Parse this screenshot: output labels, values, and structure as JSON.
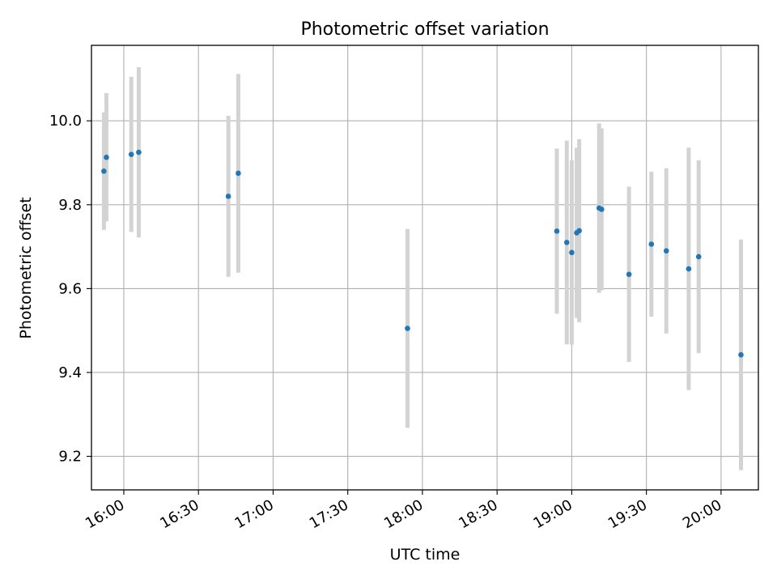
{
  "chart_data": {
    "type": "scatter",
    "title": "Photometric offset variation",
    "xlabel": "UTC time",
    "ylabel": "Photometric offset",
    "grid": true,
    "xlim": [
      "15:47",
      "20:15"
    ],
    "ylim": [
      9.12,
      10.18
    ],
    "xticks": [
      "16:00",
      "16:30",
      "17:00",
      "17:30",
      "18:00",
      "18:30",
      "19:00",
      "19:30",
      "20:00"
    ],
    "yticks": [
      "9.2",
      "9.4",
      "9.6",
      "9.8",
      "10.0"
    ],
    "colors": {
      "points": "#1f77b4",
      "errorbars": "#d3d3d3",
      "grid": "#b0b0b0"
    },
    "points": [
      {
        "time": "15:52",
        "y": 9.88,
        "ylow": 9.74,
        "yhigh": 10.02
      },
      {
        "time": "15:53",
        "y": 9.913,
        "ylow": 9.76,
        "yhigh": 10.066
      },
      {
        "time": "16:03",
        "y": 9.92,
        "ylow": 9.735,
        "yhigh": 10.105
      },
      {
        "time": "16:06",
        "y": 9.925,
        "ylow": 9.722,
        "yhigh": 10.128
      },
      {
        "time": "16:42",
        "y": 9.82,
        "ylow": 9.628,
        "yhigh": 10.012
      },
      {
        "time": "16:46",
        "y": 9.875,
        "ylow": 9.638,
        "yhigh": 10.112
      },
      {
        "time": "17:54",
        "y": 9.505,
        "ylow": 9.268,
        "yhigh": 9.742
      },
      {
        "time": "18:54",
        "y": 9.737,
        "ylow": 9.54,
        "yhigh": 9.934
      },
      {
        "time": "18:58",
        "y": 9.71,
        "ylow": 9.467,
        "yhigh": 9.953
      },
      {
        "time": "19:00",
        "y": 9.686,
        "ylow": 9.466,
        "yhigh": 9.906
      },
      {
        "time": "19:02",
        "y": 9.733,
        "ylow": 9.53,
        "yhigh": 9.936
      },
      {
        "time": "19:03",
        "y": 9.738,
        "ylow": 9.52,
        "yhigh": 9.956
      },
      {
        "time": "19:11",
        "y": 9.792,
        "ylow": 9.59,
        "yhigh": 9.994
      },
      {
        "time": "19:12",
        "y": 9.789,
        "ylow": 9.596,
        "yhigh": 9.982
      },
      {
        "time": "19:23",
        "y": 9.634,
        "ylow": 9.425,
        "yhigh": 9.843
      },
      {
        "time": "19:32",
        "y": 9.706,
        "ylow": 9.533,
        "yhigh": 9.879
      },
      {
        "time": "19:38",
        "y": 9.69,
        "ylow": 9.493,
        "yhigh": 9.887
      },
      {
        "time": "19:47",
        "y": 9.647,
        "ylow": 9.358,
        "yhigh": 9.936
      },
      {
        "time": "19:51",
        "y": 9.676,
        "ylow": 9.446,
        "yhigh": 9.906
      },
      {
        "time": "20:08",
        "y": 9.442,
        "ylow": 9.167,
        "yhigh": 9.717
      }
    ]
  }
}
